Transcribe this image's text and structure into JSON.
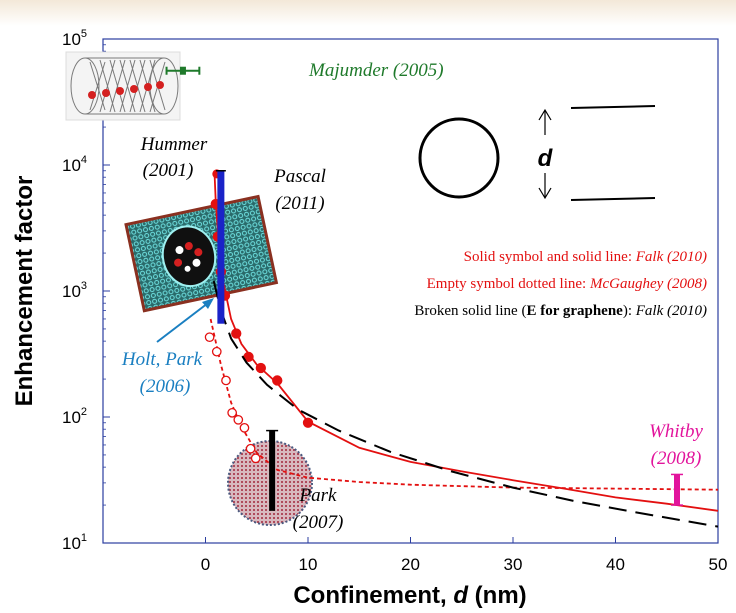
{
  "chart_data": {
    "type": "scatter",
    "title": "",
    "xlabel_prefix": "Confinement, ",
    "xlabel_var": "d",
    "xlabel_suffix": " (nm)",
    "ylabel": "Enhancement factor",
    "xlim": [
      -10,
      50
    ],
    "ylim": [
      10,
      100000
    ],
    "y_scale": "log",
    "x_ticks": [
      0,
      10,
      20,
      30,
      40,
      50
    ],
    "y_tick_exponents": [
      1,
      2,
      3,
      4,
      5
    ],
    "grid": false,
    "legend": {
      "solid_label": "Solid symbol and solid line: ",
      "solid_ref": "Falk (2010)",
      "empty_label": "Empty symbol dotted line: ",
      "empty_ref": "McGaughey (2008)",
      "broken_pre": "Broken solid line (",
      "broken_bold": "E for graphene",
      "broken_post": "): ",
      "broken_ref": "Falk (2010)"
    },
    "series": [
      {
        "name": "Falk (2010) solid",
        "style": "solid",
        "color": "#e31010",
        "points": [
          [
            1.0,
            4900
          ],
          [
            1.2,
            2700
          ],
          [
            1.5,
            1420
          ],
          [
            1.9,
            920
          ],
          [
            3.0,
            460
          ],
          [
            4.2,
            300
          ],
          [
            5.4,
            245
          ],
          [
            7.0,
            195
          ],
          [
            10.0,
            90
          ]
        ],
        "curve": [
          [
            0.9,
            8000
          ],
          [
            1.0,
            5000
          ],
          [
            1.5,
            1450
          ],
          [
            2.5,
            600
          ],
          [
            3.5,
            380
          ],
          [
            5,
            260
          ],
          [
            7,
            185
          ],
          [
            10,
            92
          ],
          [
            15,
            57
          ],
          [
            20,
            44
          ],
          [
            25,
            37
          ],
          [
            30,
            31.5
          ],
          [
            35,
            27
          ],
          [
            40,
            23
          ],
          [
            45,
            20.5
          ],
          [
            50,
            18
          ]
        ]
      },
      {
        "name": "McGaughey (2008) dotted",
        "style": "dotted",
        "color": "#e31010",
        "points": [
          [
            0.4,
            430
          ],
          [
            1.1,
            330
          ],
          [
            2.0,
            195
          ],
          [
            2.6,
            108
          ],
          [
            3.2,
            95
          ],
          [
            3.8,
            82
          ],
          [
            4.4,
            56
          ],
          [
            4.9,
            47
          ]
        ],
        "curve": [
          [
            0.5,
            600
          ],
          [
            1.5,
            260
          ],
          [
            2.5,
            130
          ],
          [
            3.5,
            84
          ],
          [
            5,
            52
          ],
          [
            7,
            38
          ],
          [
            10,
            33
          ],
          [
            15,
            30.5
          ],
          [
            20,
            29
          ],
          [
            30,
            27.5
          ],
          [
            40,
            27
          ],
          [
            50,
            26.5
          ]
        ]
      },
      {
        "name": "Falk (2010) graphene",
        "style": "dashed",
        "color": "#000000",
        "curve": [
          [
            0.8,
            1200
          ],
          [
            1.5,
            700
          ],
          [
            2.5,
            420
          ],
          [
            4,
            270
          ],
          [
            6,
            180
          ],
          [
            9,
            115
          ],
          [
            13,
            78
          ],
          [
            18,
            53
          ],
          [
            24,
            37
          ],
          [
            30,
            27.5
          ],
          [
            36,
            21.5
          ],
          [
            42,
            17.5
          ],
          [
            50,
            13.5
          ]
        ]
      }
    ],
    "annotations": [
      {
        "text": "Majumder (2005)",
        "x": -2,
        "y": 56000,
        "color": "#1f7a2b",
        "errorbar_x": [
          -3.8,
          -0.6
        ],
        "errorbar_y": 56000
      },
      {
        "text": "Hummer",
        "text2": "(2001)",
        "color": "#000000",
        "point": [
          1.1,
          8500
        ]
      },
      {
        "text": "Pascal",
        "text2": "(2011)",
        "color": "#000000",
        "bar": {
          "x": 1.5,
          "y_range": [
            550,
            9000
          ],
          "color": "#1a23c8"
        }
      },
      {
        "text": "Holt, Park",
        "text2": "(2006)",
        "color": "#1a7fc1"
      },
      {
        "text": "Park",
        "text2": "(2007)",
        "color": "#000000",
        "bar": {
          "x": 6.5,
          "y_range": [
            18,
            78
          ],
          "color": "#000000"
        }
      },
      {
        "text": "Whitby",
        "text2": "(2008)",
        "color": "#e2149c",
        "bar": {
          "x": 46,
          "y_range": [
            20,
            35
          ],
          "color": "#e2149c"
        }
      }
    ],
    "diagram_label": "d"
  }
}
